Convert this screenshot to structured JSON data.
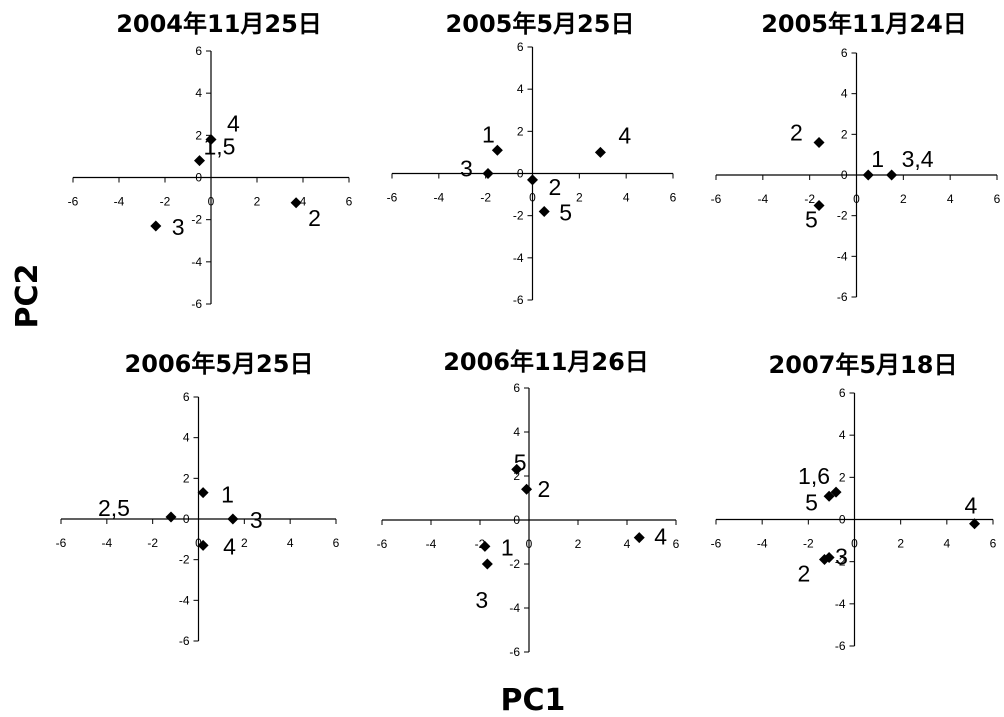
{
  "axis_titles": {
    "x": "PC1",
    "y": "PC2"
  },
  "chart_data": [
    {
      "type": "scatter",
      "title": "2004年11月25日",
      "xlim": [
        -6,
        6
      ],
      "ylim": [
        -6,
        6
      ],
      "xticks": [
        "-6",
        "-4",
        "-2",
        "0",
        "2",
        "4",
        "6"
      ],
      "yticks": [
        "-6",
        "-4",
        "-2",
        "0",
        "2",
        "4",
        "6"
      ],
      "points": [
        {
          "x": 0.0,
          "y": 1.8,
          "label": "4"
        },
        {
          "x": -0.5,
          "y": 0.8,
          "label": "1,5"
        },
        {
          "x": -2.4,
          "y": -2.3,
          "label": "3"
        },
        {
          "x": 3.7,
          "y": -1.2,
          "label": "2"
        }
      ]
    },
    {
      "type": "scatter",
      "title": "2005年5月25日",
      "xlim": [
        -6,
        6
      ],
      "ylim": [
        -6,
        6
      ],
      "xticks": [
        "-6",
        "-4",
        "-2",
        "0",
        "2",
        "4",
        "6"
      ],
      "yticks": [
        "-6",
        "-4",
        "-2",
        "0",
        "2",
        "4",
        "6"
      ],
      "points": [
        {
          "x": -1.5,
          "y": 1.1,
          "label": "1"
        },
        {
          "x": 2.9,
          "y": 1.0,
          "label": "4"
        },
        {
          "x": -1.9,
          "y": 0.0,
          "label": "3"
        },
        {
          "x": 0.0,
          "y": -0.3,
          "label": "2"
        },
        {
          "x": 0.5,
          "y": -1.8,
          "label": "5"
        }
      ]
    },
    {
      "type": "scatter",
      "title": "2005年11月24日",
      "xlim": [
        -6,
        6
      ],
      "ylim": [
        -6,
        6
      ],
      "xticks": [
        "-6",
        "-4",
        "-2",
        "0",
        "2",
        "4",
        "6"
      ],
      "yticks": [
        "-6",
        "-4",
        "-2",
        "0",
        "2",
        "4",
        "6"
      ],
      "points": [
        {
          "x": -1.6,
          "y": 1.6,
          "label": "2"
        },
        {
          "x": 0.5,
          "y": 0.0,
          "label": "1"
        },
        {
          "x": 1.5,
          "y": 0.0,
          "label": "3,4"
        },
        {
          "x": -1.6,
          "y": -1.5,
          "label": "5"
        }
      ]
    },
    {
      "type": "scatter",
      "title": "2006年5月25日",
      "xlim": [
        -6,
        6
      ],
      "ylim": [
        -6,
        6
      ],
      "xticks": [
        "-6",
        "-4",
        "-2",
        "0",
        "2",
        "4",
        "6"
      ],
      "yticks": [
        "-6",
        "-4",
        "-2",
        "0",
        "2",
        "4",
        "6"
      ],
      "points": [
        {
          "x": 0.2,
          "y": 1.3,
          "label": "1"
        },
        {
          "x": -1.2,
          "y": 0.1,
          "label": "2,5"
        },
        {
          "x": 1.5,
          "y": 0.0,
          "label": "3"
        },
        {
          "x": 0.2,
          "y": -1.3,
          "label": "4"
        }
      ]
    },
    {
      "type": "scatter",
      "title": "2006年11月26日",
      "xlim": [
        -6,
        6
      ],
      "ylim": [
        -6,
        6
      ],
      "xticks": [
        "-6",
        "-4",
        "-2",
        "0",
        "2",
        "4",
        "6"
      ],
      "yticks": [
        "-6",
        "-4",
        "-2",
        "0",
        "2",
        "4",
        "6"
      ],
      "points": [
        {
          "x": -0.5,
          "y": 2.3,
          "label": "5"
        },
        {
          "x": -0.1,
          "y": 1.4,
          "label": "2"
        },
        {
          "x": -1.8,
          "y": -1.2,
          "label": "1"
        },
        {
          "x": -1.7,
          "y": -2.0,
          "label": "3"
        },
        {
          "x": 4.5,
          "y": -0.8,
          "label": "4"
        }
      ]
    },
    {
      "type": "scatter",
      "title": "2007年5月18日",
      "xlim": [
        -6,
        6
      ],
      "ylim": [
        -6,
        6
      ],
      "xticks": [
        "-6",
        "-4",
        "-2",
        "0",
        "2",
        "4",
        "6"
      ],
      "yticks": [
        "-6",
        "-4",
        "-2",
        "0",
        "2",
        "4",
        "6"
      ],
      "points": [
        {
          "x": -0.8,
          "y": 1.3,
          "label": "1,6"
        },
        {
          "x": -1.1,
          "y": 1.1,
          "label": "5"
        },
        {
          "x": 5.2,
          "y": -0.2,
          "label": "4"
        },
        {
          "x": -1.3,
          "y": -1.9,
          "label": "2"
        },
        {
          "x": -1.1,
          "y": -1.8,
          "label": "3"
        }
      ]
    }
  ]
}
